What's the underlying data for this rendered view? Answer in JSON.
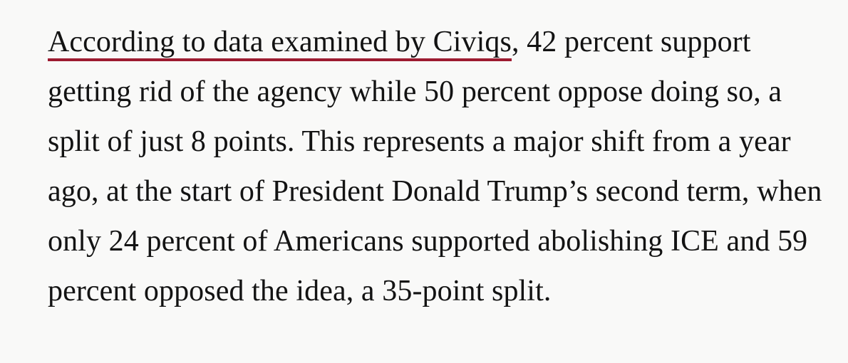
{
  "page": {
    "background_color": "#f9f9f8",
    "text_color": "#131313"
  },
  "article": {
    "paragraph": {
      "link_text": "According to data examined by Civiqs",
      "link_underline_color": "#9c1b30",
      "after_link": ", 42 percent support getting rid of the agency while 50 percent oppose doing so, a split of just 8 points. This represents a major shift from a year ago, at the start of President Donald Trump’s second term, when only 24 percent of Americans supported abolishing ICE and 59 percent opposed the idea, a 35-point split."
    }
  }
}
